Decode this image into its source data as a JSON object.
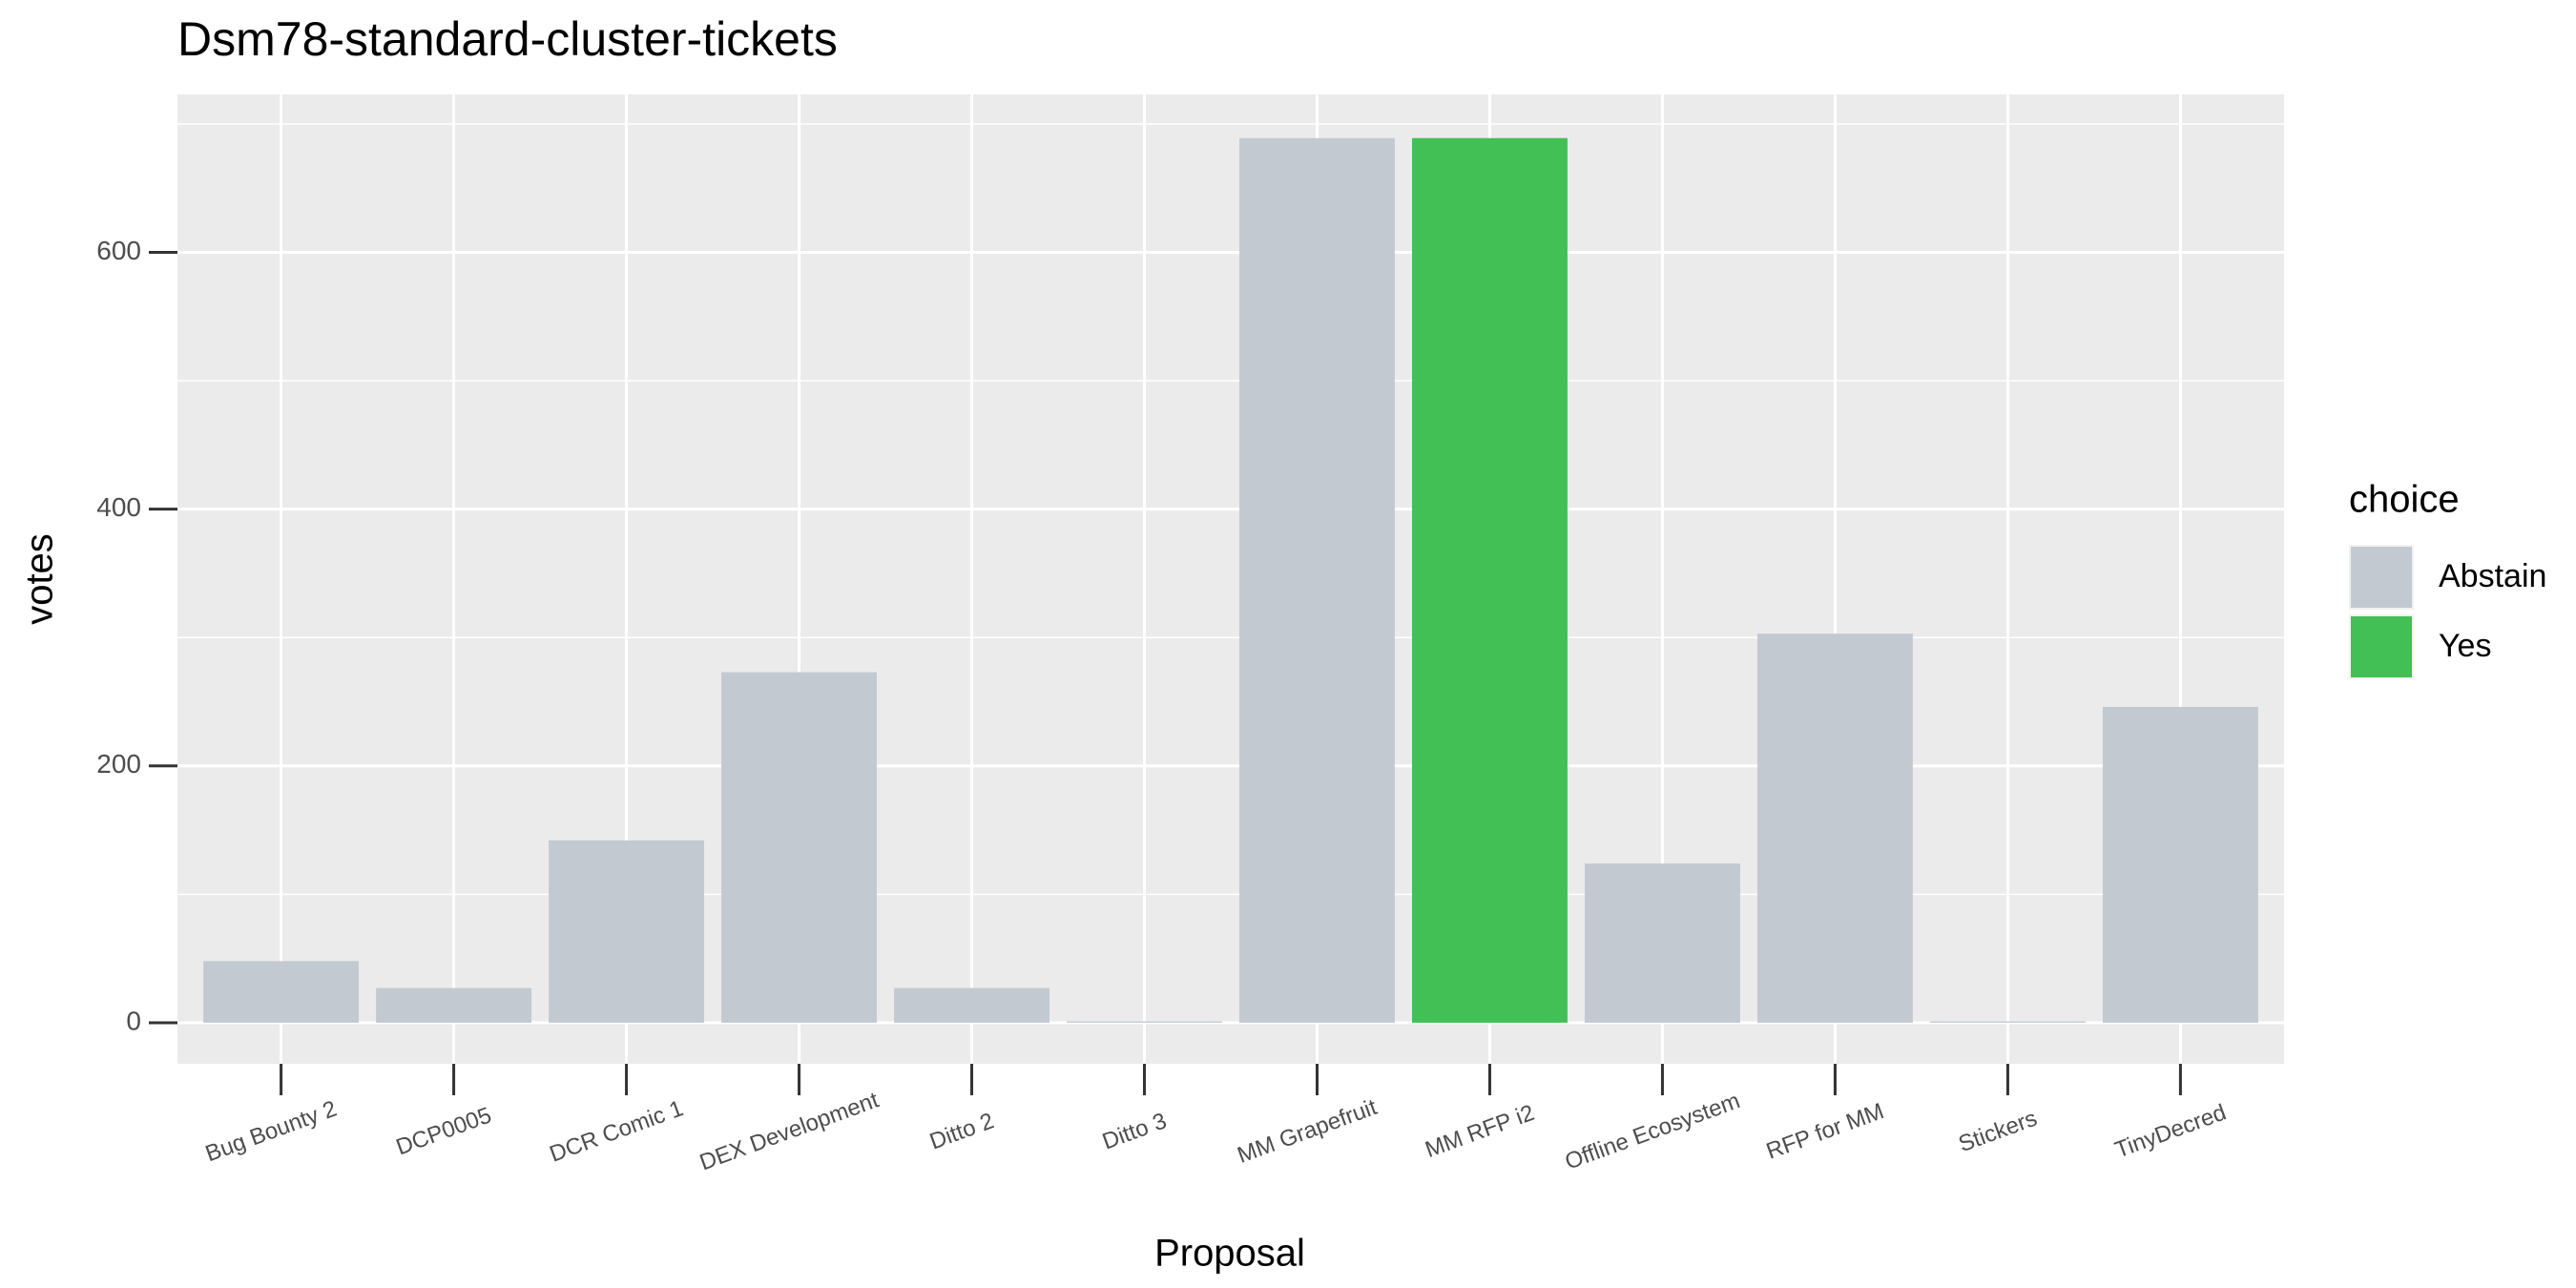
{
  "chart_data": {
    "type": "bar",
    "title": "Dsm78-standard-cluster-tickets",
    "x_label": "Proposal",
    "y_label": "votes",
    "legend_title": "choice",
    "legend_position": "right",
    "categories": [
      "Bug Bounty 2",
      "DCP0005",
      "DCR Comic 1",
      "DEX Development",
      "Ditto 2",
      "Ditto 3",
      "MM Grapefruit",
      "MM RFP i2",
      "Offline Ecosystem",
      "RFP for MM",
      "Stickers",
      "TinyDecred"
    ],
    "series": [
      {
        "name": "Abstain",
        "color": "#c3c9d1",
        "values": [
          48,
          27,
          142,
          273,
          27,
          1,
          689,
          null,
          124,
          303,
          1,
          246
        ]
      },
      {
        "name": "Yes",
        "color": "#42bf55",
        "values": [
          null,
          null,
          null,
          null,
          null,
          null,
          null,
          689,
          null,
          null,
          null,
          null
        ]
      }
    ],
    "ylim": [
      -32,
      723
    ],
    "yticks": [
      0,
      200,
      400,
      600
    ],
    "minor_yticks": [
      100,
      300,
      500,
      700
    ],
    "grid": true
  }
}
